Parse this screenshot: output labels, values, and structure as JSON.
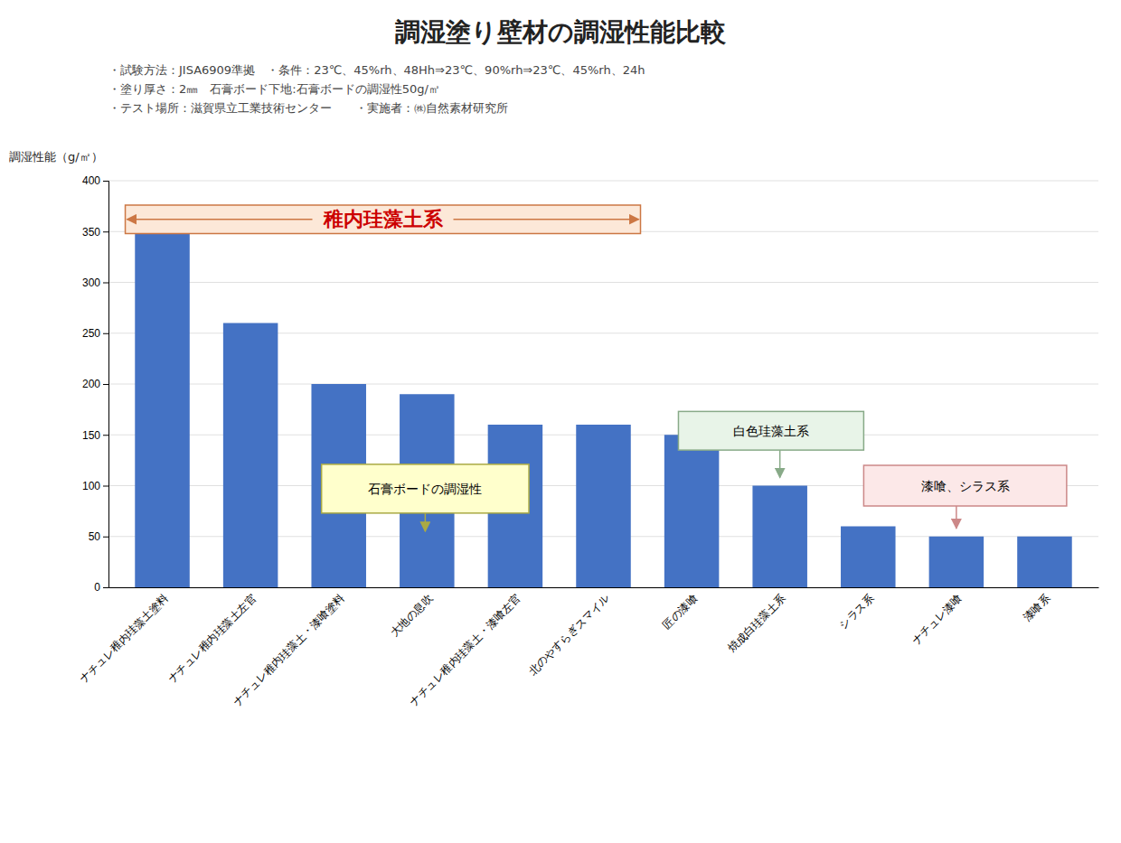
{
  "chart_data": {
    "type": "bar",
    "title": "調湿塗り壁材の調湿性能比較",
    "subtitle": [
      "・試験方法：JISA6909準拠　・条件：23℃、45%rh、48Hh⇒23℃、90%rh⇒23℃、45%rh、24h",
      "・塗り厚さ：2㎜　石膏ボード下地:石膏ボードの調湿性50g/㎡",
      "・テスト場所：滋賀県立工業技術センター　　・実施者：㈱自然素材研究所"
    ],
    "ylabel": "調湿性能（g/㎡）",
    "categories": [
      "ナチュレ稚内珪藻土塗料",
      "ナチュレ稚内珪藻土左官",
      "ナチュレ稚内珪藻土・漆喰塗料",
      "大地の息吹",
      "ナチュレ稚内珪藻土・漆喰左官",
      "北のやすらぎスマイル",
      "匠の漆喰",
      "焼成白珪藻土系",
      "シラス系",
      "ナチュレ漆喰",
      "漆喰系"
    ],
    "values": [
      350,
      260,
      200,
      190,
      160,
      160,
      150,
      100,
      60,
      50,
      50
    ],
    "color": "#4472c4",
    "ylim": [
      0,
      400
    ],
    "yticks": [
      0,
      50,
      100,
      150,
      200,
      250,
      300,
      350,
      400
    ],
    "grid": true,
    "annotations": [
      {
        "text": "稚内珪藻土系",
        "color": "#cc0000"
      },
      {
        "text": "石膏ボードの調湿性"
      },
      {
        "text": "白色珪藻土系"
      },
      {
        "text": "漆喰、シラス系"
      }
    ]
  }
}
